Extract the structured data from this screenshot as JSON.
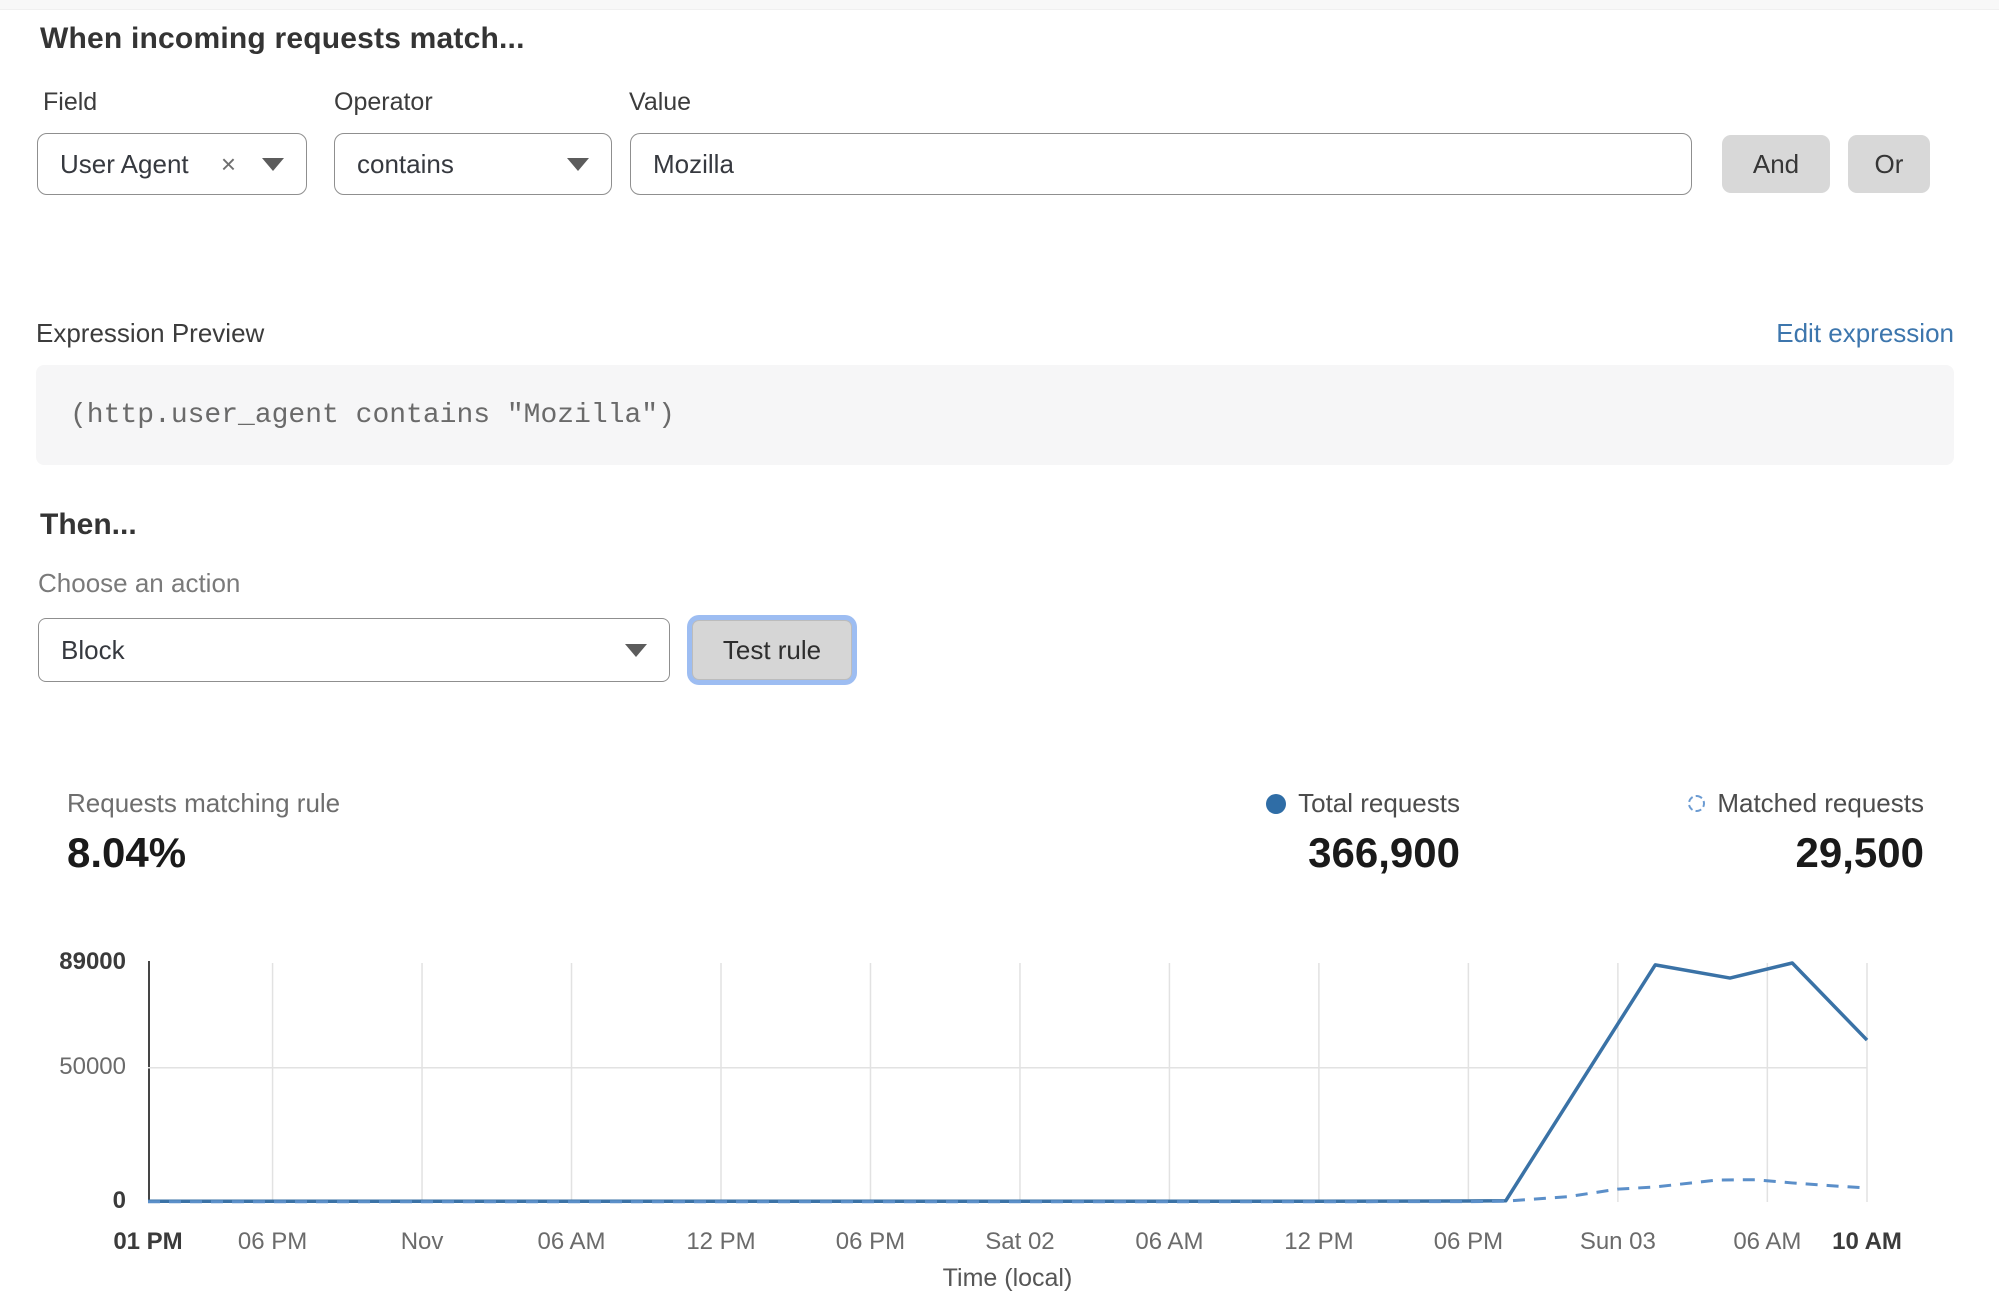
{
  "rule_builder": {
    "heading": "When incoming requests match...",
    "field": {
      "label": "Field",
      "value": "User Agent"
    },
    "operator": {
      "label": "Operator",
      "value": "contains"
    },
    "value": {
      "label": "Value",
      "value": "Mozilla"
    },
    "and_label": "And",
    "or_label": "Or"
  },
  "expression": {
    "label": "Expression Preview",
    "edit_link": "Edit expression",
    "code": "(http.user_agent contains \"Mozilla\")"
  },
  "action": {
    "heading": "Then...",
    "choose_label": "Choose an action",
    "selected": "Block",
    "test_button": "Test rule"
  },
  "stats": {
    "matching": {
      "label": "Requests matching rule",
      "value": "8.04%"
    },
    "total": {
      "label": "Total requests",
      "value": "366,900"
    },
    "matched": {
      "label": "Matched requests",
      "value": "29,500"
    }
  },
  "colors": {
    "line_blue": "#3a72a6",
    "dashed_blue": "#5b8fc9",
    "grid": "#e2e2e2",
    "axis": "#454545",
    "link_blue": "#3d76ad"
  },
  "chart_data": {
    "type": "line",
    "title": "",
    "xlabel": "Time (local)",
    "ylabel": "",
    "ylim": [
      0,
      89000
    ],
    "x_hours_total": 69,
    "grid": true,
    "legend_position": "top-right",
    "yticks": [
      {
        "label": "89000",
        "value": 89000,
        "bold": true
      },
      {
        "label": "50000",
        "value": 50000,
        "bold": false
      },
      {
        "label": "0",
        "value": 0,
        "bold": true
      }
    ],
    "xticks": [
      {
        "label": "01 PM",
        "hour": 0,
        "bold": true
      },
      {
        "label": "06 PM",
        "hour": 5,
        "bold": false
      },
      {
        "label": "Nov",
        "hour": 11,
        "bold": false
      },
      {
        "label": "06 AM",
        "hour": 17,
        "bold": false
      },
      {
        "label": "12 PM",
        "hour": 23,
        "bold": false
      },
      {
        "label": "06 PM",
        "hour": 29,
        "bold": false
      },
      {
        "label": "Sat 02",
        "hour": 35,
        "bold": false
      },
      {
        "label": "06 AM",
        "hour": 41,
        "bold": false
      },
      {
        "label": "12 PM",
        "hour": 47,
        "bold": false
      },
      {
        "label": "06 PM",
        "hour": 53,
        "bold": false
      },
      {
        "label": "Sun 03",
        "hour": 59,
        "bold": false
      },
      {
        "label": "06 AM",
        "hour": 65,
        "bold": false
      },
      {
        "label": "10 AM",
        "hour": 69,
        "bold": true
      }
    ],
    "series": [
      {
        "name": "Total requests",
        "style": "solid",
        "color": "#3a72a6",
        "points": [
          [
            0,
            300
          ],
          [
            5,
            300
          ],
          [
            11,
            300
          ],
          [
            17,
            300
          ],
          [
            23,
            300
          ],
          [
            29,
            300
          ],
          [
            35,
            300
          ],
          [
            41,
            300
          ],
          [
            47,
            300
          ],
          [
            53,
            350
          ],
          [
            54.5,
            450
          ],
          [
            60.5,
            88300
          ],
          [
            63.5,
            83400
          ],
          [
            66,
            89000
          ],
          [
            69,
            60300
          ]
        ]
      },
      {
        "name": "Matched requests",
        "style": "dashed",
        "color": "#5b8fc9",
        "points": [
          [
            0,
            100
          ],
          [
            5,
            100
          ],
          [
            11,
            100
          ],
          [
            17,
            100
          ],
          [
            23,
            100
          ],
          [
            29,
            100
          ],
          [
            35,
            100
          ],
          [
            41,
            100
          ],
          [
            47,
            100
          ],
          [
            53,
            150
          ],
          [
            54.5,
            300
          ],
          [
            57,
            2000
          ],
          [
            59,
            4800
          ],
          [
            60.5,
            5600
          ],
          [
            63,
            8200
          ],
          [
            64.5,
            8300
          ],
          [
            66,
            7100
          ],
          [
            67.5,
            6100
          ],
          [
            69,
            5200
          ]
        ]
      }
    ]
  }
}
